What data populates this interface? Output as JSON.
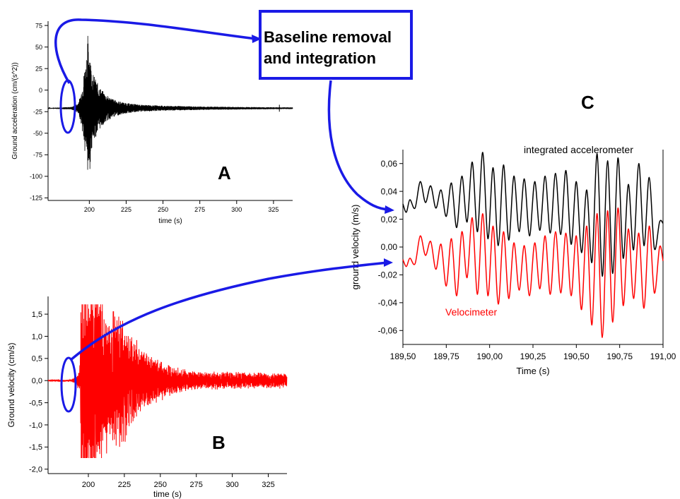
{
  "panels": {
    "A": "A",
    "B": "B",
    "C": "C"
  },
  "callout": {
    "line1": "Baseline removal",
    "line2": "and integration"
  },
  "colors": {
    "accel": "#000000",
    "velocimeter": "#ff0000",
    "integrated": "#000000",
    "annotation": "#1a1ae6"
  },
  "chart_data": [
    {
      "id": "A",
      "type": "line",
      "title": "",
      "xlabel": "time (s)",
      "ylabel": "Ground acceleration (cm/(s^2))",
      "xlim": [
        172,
        338
      ],
      "ylim": [
        -128,
        80
      ],
      "x_ticks": [
        200,
        225,
        250,
        275,
        300,
        325
      ],
      "y_ticks": [
        75,
        50,
        25,
        0,
        -25,
        -50,
        -75,
        -100,
        -125
      ],
      "series": [
        {
          "style": "accelerogram",
          "baseline": -21,
          "x": [
            172,
            188,
            192,
            194,
            196,
            197,
            197.5,
            198,
            198.5,
            199,
            199.5,
            200,
            201,
            202,
            204,
            206,
            208,
            212,
            218,
            225,
            235,
            250,
            275,
            300,
            320,
            338
          ],
          "envelope": [
            0.3,
            1.5,
            5,
            14,
            35,
            55,
            45,
            70,
            48,
            93,
            60,
            83,
            55,
            42,
            35,
            28,
            22,
            15,
            9,
            6,
            4,
            3,
            2,
            1.5,
            1.2,
            1
          ]
        }
      ]
    },
    {
      "id": "B",
      "type": "line",
      "title": "",
      "xlabel": "time (s)",
      "ylabel": "Ground velocity (cm/s)",
      "xlim": [
        172,
        338
      ],
      "ylim": [
        -2.1,
        1.9
      ],
      "x_ticks": [
        200,
        225,
        250,
        275,
        300,
        325
      ],
      "y_ticks": [
        1.5,
        1.0,
        0.5,
        0.0,
        -0.5,
        -1.0,
        -1.5,
        -2.0
      ],
      "y_tick_labels": [
        "1,5",
        "1,0",
        "0,5",
        "0,0",
        "-0,5",
        "-1,0",
        "-1,5",
        "-2,0"
      ],
      "series": [
        {
          "name": "",
          "style": "velocigram",
          "clip": [
            -1.75,
            1.72
          ],
          "x": [
            172,
            188,
            192,
            194,
            195,
            197,
            200,
            205,
            210,
            215,
            220,
            225,
            230,
            240,
            250,
            260,
            275,
            300,
            338
          ],
          "envelope": [
            0.01,
            0.02,
            0.12,
            0.3,
            2.4,
            2.8,
            2.6,
            2.3,
            1.9,
            1.6,
            1.7,
            1.5,
            1.1,
            0.7,
            0.5,
            0.32,
            0.22,
            0.2,
            0.18
          ]
        }
      ]
    },
    {
      "id": "C",
      "type": "line",
      "title": "",
      "xlabel": "Time (s)",
      "ylabel": "ground velocity (m/s)",
      "xlim": [
        189.5,
        191.0
      ],
      "ylim": [
        -0.07,
        0.07
      ],
      "x_ticks": [
        189.5,
        189.75,
        190.0,
        190.25,
        190.5,
        190.75,
        191.0
      ],
      "x_tick_labels": [
        "189,50",
        "189,75",
        "190,00",
        "190,25",
        "190,50",
        "190,75",
        "191,00"
      ],
      "y_ticks": [
        0.06,
        0.04,
        0.02,
        0.0,
        -0.02,
        -0.04,
        -0.06
      ],
      "y_tick_labels": [
        "0,06",
        "0,04",
        "0,02",
        "0,00",
        "-0,02",
        "-0,04",
        "-0,06"
      ],
      "series": [
        {
          "name": "integrated accelerometer",
          "x": [
            189.5,
            189.52,
            189.54,
            189.57,
            189.6,
            189.63,
            189.66,
            189.69,
            189.72,
            189.75,
            189.78,
            189.81,
            189.84,
            189.87,
            189.9,
            189.93,
            189.96,
            189.99,
            190.02,
            190.05,
            190.08,
            190.11,
            190.14,
            190.17,
            190.2,
            190.23,
            190.26,
            190.29,
            190.32,
            190.35,
            190.38,
            190.41,
            190.44,
            190.47,
            190.5,
            190.53,
            190.56,
            190.59,
            190.62,
            190.65,
            190.68,
            190.71,
            190.74,
            190.77,
            190.8,
            190.83,
            190.86,
            190.89,
            190.92,
            190.95,
            190.98,
            191.0
          ],
          "values": [
            0.031,
            0.025,
            0.034,
            0.028,
            0.047,
            0.032,
            0.044,
            0.028,
            0.041,
            0.022,
            0.046,
            0.014,
            0.051,
            0.018,
            0.061,
            0.011,
            0.068,
            0.006,
            0.057,
            0.001,
            0.059,
            0.005,
            0.051,
            0.011,
            0.049,
            0.008,
            0.047,
            0.012,
            0.051,
            0.01,
            0.053,
            0.009,
            0.055,
            0.002,
            0.047,
            -0.004,
            0.041,
            -0.011,
            0.067,
            -0.021,
            0.062,
            -0.019,
            0.064,
            -0.008,
            0.045,
            -0.002,
            0.06,
            0.001,
            0.05,
            -0.001,
            0.018,
            0.017
          ]
        },
        {
          "name": "Velocimeter",
          "x": [
            189.5,
            189.52,
            189.54,
            189.57,
            189.6,
            189.63,
            189.66,
            189.69,
            189.72,
            189.75,
            189.78,
            189.81,
            189.84,
            189.87,
            189.9,
            189.93,
            189.96,
            189.99,
            190.02,
            190.05,
            190.08,
            190.11,
            190.14,
            190.17,
            190.2,
            190.23,
            190.26,
            190.29,
            190.32,
            190.35,
            190.38,
            190.41,
            190.44,
            190.47,
            190.5,
            190.53,
            190.56,
            190.59,
            190.62,
            190.65,
            190.68,
            190.71,
            190.74,
            190.77,
            190.8,
            190.83,
            190.86,
            190.89,
            190.92,
            190.95,
            190.98,
            191.0
          ],
          "values": [
            -0.009,
            -0.014,
            -0.008,
            -0.012,
            0.008,
            -0.006,
            0.004,
            -0.016,
            0.002,
            -0.028,
            0.006,
            -0.035,
            0.011,
            -0.022,
            0.021,
            -0.034,
            0.024,
            -0.035,
            0.015,
            -0.041,
            0.011,
            -0.037,
            0.003,
            -0.031,
            0.001,
            -0.035,
            0.003,
            -0.03,
            0.008,
            -0.034,
            0.011,
            -0.033,
            0.01,
            -0.035,
            0.008,
            -0.045,
            0.015,
            -0.056,
            0.024,
            -0.065,
            0.026,
            -0.054,
            0.028,
            -0.042,
            0.013,
            -0.037,
            0.01,
            -0.044,
            0.015,
            -0.033,
            0.0,
            -0.01
          ]
        }
      ]
    }
  ]
}
